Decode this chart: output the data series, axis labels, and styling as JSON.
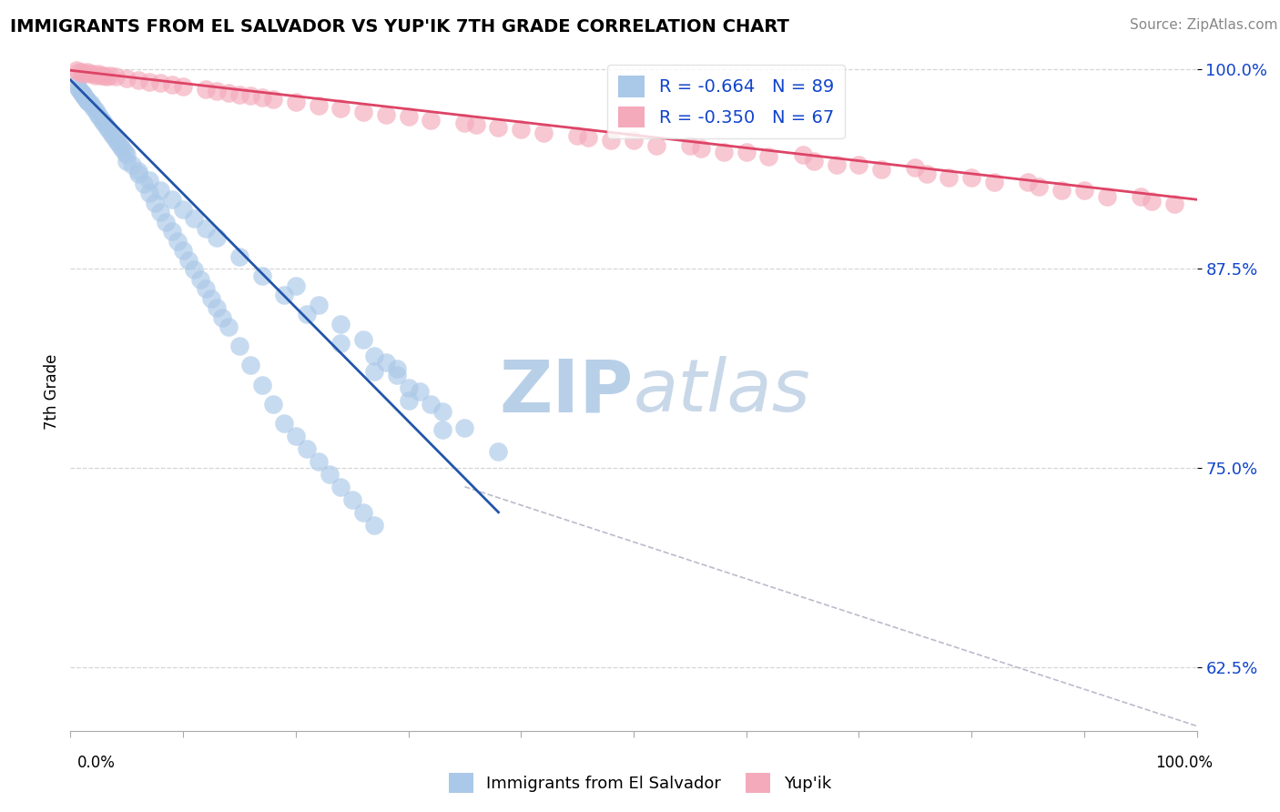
{
  "title": "IMMIGRANTS FROM EL SALVADOR VS YUP'IK 7TH GRADE CORRELATION CHART",
  "source": "Source: ZipAtlas.com",
  "ylabel": "7th Grade",
  "xlim": [
    0.0,
    1.0
  ],
  "ylim": [
    0.585,
    1.01
  ],
  "yticks": [
    0.625,
    0.75,
    0.875,
    1.0
  ],
  "ytick_labels": [
    "62.5%",
    "75.0%",
    "87.5%",
    "100.0%"
  ],
  "blue_R": "-0.664",
  "blue_N": "89",
  "pink_R": "-0.350",
  "pink_N": "67",
  "blue_color": "#aac8e8",
  "pink_color": "#f4aabb",
  "blue_line_color": "#2255aa",
  "pink_line_color": "#dd4466",
  "diagonal_color": "#bbbbcc",
  "legend_R_color": "#1144cc",
  "background_color": "#ffffff",
  "grid_color": "#cccccc",
  "blue_scatter_x": [
    0.005,
    0.007,
    0.009,
    0.01,
    0.011,
    0.012,
    0.013,
    0.014,
    0.015,
    0.016,
    0.018,
    0.02,
    0.022,
    0.024,
    0.026,
    0.028,
    0.03,
    0.032,
    0.034,
    0.036,
    0.038,
    0.04,
    0.042,
    0.044,
    0.046,
    0.048,
    0.05,
    0.055,
    0.06,
    0.065,
    0.07,
    0.075,
    0.08,
    0.085,
    0.09,
    0.095,
    0.1,
    0.105,
    0.11,
    0.115,
    0.12,
    0.125,
    0.13,
    0.135,
    0.14,
    0.15,
    0.16,
    0.17,
    0.18,
    0.19,
    0.2,
    0.21,
    0.22,
    0.23,
    0.24,
    0.25,
    0.26,
    0.27,
    0.05,
    0.06,
    0.07,
    0.08,
    0.09,
    0.1,
    0.11,
    0.12,
    0.13,
    0.15,
    0.17,
    0.19,
    0.21,
    0.24,
    0.27,
    0.3,
    0.33,
    0.27,
    0.29,
    0.32,
    0.3,
    0.33,
    0.35,
    0.38,
    0.29,
    0.31,
    0.26,
    0.28,
    0.24,
    0.22,
    0.2
  ],
  "blue_scatter_y": [
    0.99,
    0.988,
    0.986,
    0.985,
    0.984,
    0.983,
    0.982,
    0.981,
    0.98,
    0.979,
    0.978,
    0.976,
    0.974,
    0.972,
    0.97,
    0.968,
    0.966,
    0.964,
    0.962,
    0.96,
    0.958,
    0.956,
    0.954,
    0.952,
    0.95,
    0.948,
    0.946,
    0.94,
    0.934,
    0.928,
    0.922,
    0.916,
    0.91,
    0.904,
    0.898,
    0.892,
    0.886,
    0.88,
    0.874,
    0.868,
    0.862,
    0.856,
    0.85,
    0.844,
    0.838,
    0.826,
    0.814,
    0.802,
    0.79,
    0.778,
    0.77,
    0.762,
    0.754,
    0.746,
    0.738,
    0.73,
    0.722,
    0.714,
    0.942,
    0.936,
    0.93,
    0.924,
    0.918,
    0.912,
    0.906,
    0.9,
    0.894,
    0.882,
    0.87,
    0.858,
    0.846,
    0.828,
    0.81,
    0.792,
    0.774,
    0.82,
    0.808,
    0.79,
    0.8,
    0.785,
    0.775,
    0.76,
    0.812,
    0.798,
    0.83,
    0.816,
    0.84,
    0.852,
    0.864
  ],
  "pink_scatter_x": [
    0.005,
    0.01,
    0.015,
    0.02,
    0.025,
    0.03,
    0.035,
    0.04,
    0.05,
    0.06,
    0.07,
    0.08,
    0.09,
    0.1,
    0.12,
    0.14,
    0.16,
    0.18,
    0.2,
    0.22,
    0.007,
    0.012,
    0.017,
    0.022,
    0.027,
    0.032,
    0.3,
    0.4,
    0.5,
    0.6,
    0.7,
    0.8,
    0.9,
    0.95,
    0.35,
    0.45,
    0.55,
    0.65,
    0.75,
    0.85,
    0.24,
    0.26,
    0.28,
    0.32,
    0.36,
    0.38,
    0.42,
    0.46,
    0.48,
    0.52,
    0.56,
    0.58,
    0.62,
    0.66,
    0.68,
    0.72,
    0.76,
    0.78,
    0.82,
    0.86,
    0.88,
    0.92,
    0.96,
    0.98,
    0.13,
    0.15,
    0.17
  ],
  "pink_scatter_y": [
    0.999,
    0.998,
    0.998,
    0.997,
    0.997,
    0.996,
    0.996,
    0.995,
    0.994,
    0.993,
    0.992,
    0.991,
    0.99,
    0.989,
    0.987,
    0.985,
    0.983,
    0.981,
    0.979,
    0.977,
    0.998,
    0.997,
    0.997,
    0.996,
    0.996,
    0.995,
    0.97,
    0.962,
    0.955,
    0.948,
    0.94,
    0.932,
    0.924,
    0.92,
    0.966,
    0.958,
    0.952,
    0.946,
    0.938,
    0.929,
    0.975,
    0.973,
    0.971,
    0.968,
    0.965,
    0.963,
    0.96,
    0.957,
    0.955,
    0.952,
    0.95,
    0.948,
    0.945,
    0.942,
    0.94,
    0.937,
    0.934,
    0.932,
    0.929,
    0.926,
    0.924,
    0.92,
    0.917,
    0.915,
    0.986,
    0.984,
    0.982
  ],
  "watermark_zip": "ZIP",
  "watermark_atlas": "atlas",
  "watermark_color": "#ccddf0"
}
